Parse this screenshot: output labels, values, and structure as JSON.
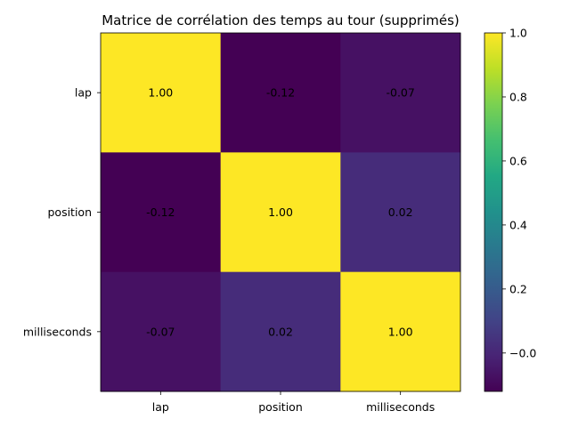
{
  "chart_data": {
    "type": "heatmap",
    "title": "Matrice de corrélation des temps au tour (supprimés)",
    "xlabel": "",
    "ylabel": "",
    "x_categories": [
      "lap",
      "position",
      "milliseconds"
    ],
    "y_categories": [
      "lap",
      "position",
      "milliseconds"
    ],
    "matrix": [
      [
        1.0,
        -0.12,
        -0.07
      ],
      [
        -0.12,
        1.0,
        0.02
      ],
      [
        -0.07,
        0.02,
        1.0
      ]
    ],
    "cell_labels": [
      [
        "1.00",
        "-0.12",
        "-0.07"
      ],
      [
        "-0.12",
        "1.00",
        "0.02"
      ],
      [
        "-0.07",
        "0.02",
        "1.00"
      ]
    ],
    "colormap": "viridis",
    "colorbar": {
      "vmin": -0.12,
      "vmax": 1.0,
      "ticks": [
        -0.0,
        0.2,
        0.4,
        0.6,
        0.8,
        1.0
      ],
      "tick_labels": [
        "−0.0",
        "0.2",
        "0.4",
        "0.6",
        "0.8",
        "1.0"
      ]
    },
    "grid": false
  }
}
